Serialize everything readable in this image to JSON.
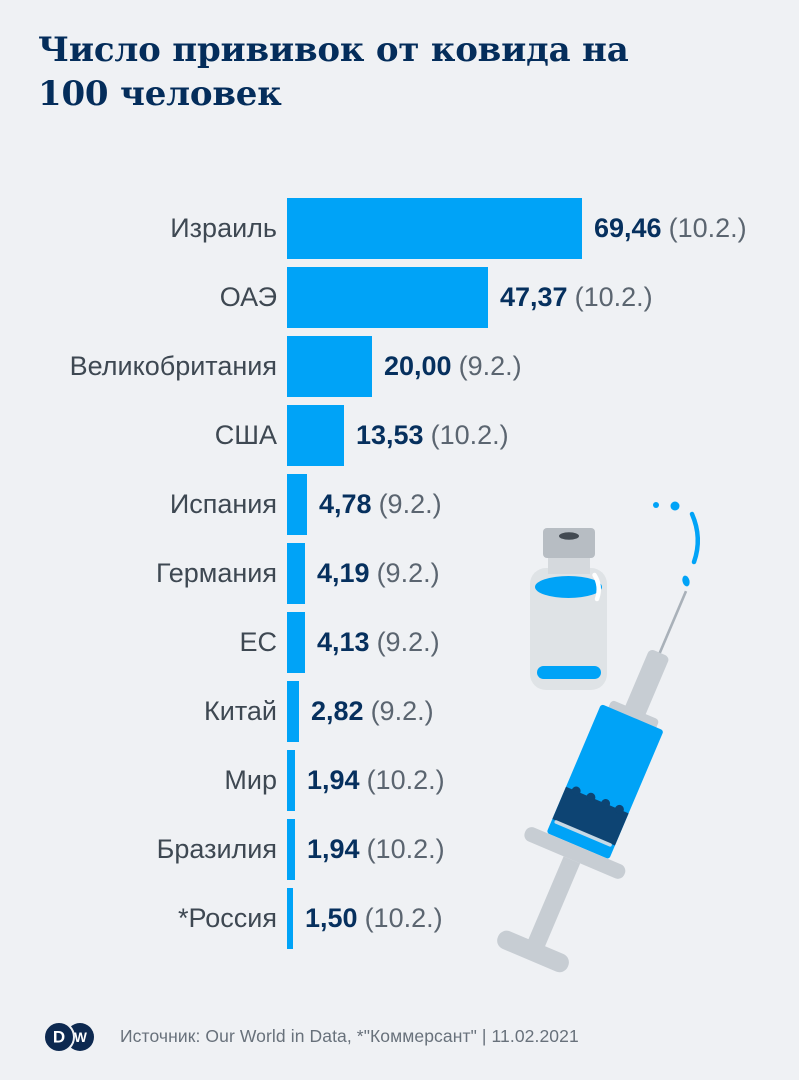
{
  "header": {
    "title": "Число прививок от ковида на\n100 человек"
  },
  "chart_data": {
    "type": "bar",
    "orientation": "horizontal",
    "title": "Число прививок от ковида на 100 человек",
    "xlabel": "",
    "ylabel": "",
    "xlim": [
      0,
      69.46
    ],
    "grid": false,
    "legend": "none",
    "categories": [
      "Израиль",
      "ОАЭ",
      "Великобритания",
      "США",
      "Испания",
      "Германия",
      "ЕС",
      "Китай",
      "Мир",
      "Бразилия",
      "*Россия"
    ],
    "values": [
      69.46,
      47.37,
      20.0,
      13.53,
      4.78,
      4.19,
      4.13,
      2.82,
      1.94,
      1.94,
      1.5
    ],
    "value_labels": [
      "69,46",
      "47,37",
      "20,00",
      "13,53",
      "4,78",
      "4,19",
      "4,13",
      "2,82",
      "1,94",
      "1,94",
      "1,50"
    ],
    "date_labels": [
      "(10.2.)",
      "(10.2.)",
      "(9.2.)",
      "(10.2.)",
      "(9.2.)",
      "(9.2.)",
      "(9.2.)",
      "(9.2.)",
      "(10.2.)",
      "(10.2.)",
      "(10.2.)"
    ],
    "bar_color": "#00A3F7"
  },
  "illustration": {
    "name": "vaccine-vial-and-syringe",
    "liquid_color": "#00A3F7",
    "glass_color": "#DFE3E6",
    "cap_color": "#B7BDC3",
    "metal_color": "#C7CDD3",
    "stopper_color": "#0D4473"
  },
  "footer": {
    "logo": "DW",
    "logo_letter_left": "D",
    "logo_letter_right": "W",
    "source": "Источник: Our World in Data, *\"Коммерсант\" | 11.02.2021"
  },
  "colors": {
    "background": "#EFF1F4",
    "title_navy": "#042D5B",
    "value_navy": "#06305E",
    "label_gray": "#3E4852",
    "date_gray": "#5B6570",
    "footer_gray": "#68717B",
    "logo_navy": "#0D2950"
  }
}
